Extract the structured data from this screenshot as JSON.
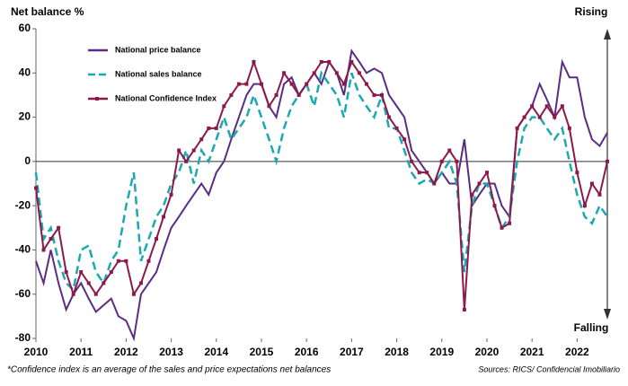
{
  "chart_data": {
    "type": "line",
    "title": "Net balance %",
    "annotations": {
      "top": "Rising",
      "bottom": "Falling"
    },
    "footnote": "*Confidence index is an average of the sales and price expectations net balances",
    "source": "Sources: RICS/ Confidencial Imobiliario",
    "x": [
      2010,
      2010.17,
      2010.33,
      2010.5,
      2010.67,
      2010.83,
      2011,
      2011.17,
      2011.33,
      2011.5,
      2011.67,
      2011.83,
      2012,
      2012.17,
      2012.33,
      2012.5,
      2012.67,
      2012.83,
      2013,
      2013.17,
      2013.33,
      2013.5,
      2013.67,
      2013.83,
      2014,
      2014.17,
      2014.33,
      2014.5,
      2014.67,
      2014.83,
      2015,
      2015.17,
      2015.33,
      2015.5,
      2015.67,
      2015.83,
      2016,
      2016.17,
      2016.33,
      2016.5,
      2016.67,
      2016.83,
      2017,
      2017.17,
      2017.33,
      2017.5,
      2017.67,
      2017.83,
      2018,
      2018.17,
      2018.33,
      2018.5,
      2018.67,
      2018.83,
      2019,
      2019.17,
      2019.33,
      2019.5,
      2019.67,
      2019.83,
      2020,
      2020.17,
      2020.33,
      2020.5,
      2020.67,
      2020.83,
      2021,
      2021.17,
      2021.33,
      2021.5,
      2021.67,
      2021.83,
      2022,
      2022.17,
      2022.33,
      2022.5,
      2022.67
    ],
    "series": [
      {
        "name": "National price balance",
        "color": "#5b2c83",
        "style": "solid",
        "markers": false,
        "values": [
          -45,
          -55,
          -40,
          -55,
          -67,
          -60,
          -55,
          -62,
          -68,
          -65,
          -62,
          -70,
          -72,
          -80,
          -60,
          -55,
          -50,
          -40,
          -30,
          -25,
          -20,
          -15,
          -10,
          -15,
          -5,
          0,
          10,
          20,
          30,
          35,
          35,
          25,
          20,
          35,
          38,
          30,
          35,
          40,
          35,
          45,
          40,
          30,
          50,
          45,
          40,
          42,
          40,
          30,
          25,
          20,
          5,
          0,
          -5,
          -10,
          -5,
          -10,
          -10,
          10,
          -20,
          -15,
          -10,
          -10,
          -20,
          -25,
          15,
          20,
          25,
          35,
          28,
          20,
          45,
          38,
          38,
          20,
          10,
          7,
          13
        ]
      },
      {
        "name": "National sales balance",
        "color": "#1aa9b0",
        "style": "dashed",
        "markers": false,
        "values": [
          -5,
          -35,
          -30,
          -45,
          -55,
          -58,
          -40,
          -38,
          -50,
          -55,
          -45,
          -40,
          -20,
          -5,
          -45,
          -35,
          -25,
          -20,
          -10,
          -5,
          5,
          -10,
          5,
          0,
          10,
          20,
          10,
          15,
          20,
          30,
          20,
          10,
          0,
          15,
          25,
          30,
          35,
          25,
          40,
          35,
          30,
          20,
          40,
          30,
          25,
          20,
          30,
          15,
          15,
          5,
          -5,
          -10,
          -8,
          -10,
          -5,
          0,
          -10,
          -50,
          -20,
          -10,
          -10,
          -20,
          -30,
          -25,
          0,
          15,
          20,
          20,
          15,
          10,
          15,
          0,
          -15,
          -25,
          -28,
          -20,
          -25
        ]
      },
      {
        "name": "National Confidence Index",
        "color": "#8b1a4a",
        "style": "solid",
        "markers": true,
        "values": [
          -12,
          -40,
          -35,
          -30,
          -50,
          -60,
          -50,
          -55,
          -60,
          -55,
          -50,
          -45,
          -45,
          -60,
          -55,
          -45,
          -35,
          -25,
          -15,
          5,
          0,
          5,
          10,
          15,
          15,
          25,
          30,
          35,
          35,
          45,
          35,
          25,
          30,
          40,
          35,
          30,
          35,
          40,
          45,
          45,
          40,
          35,
          45,
          40,
          35,
          30,
          30,
          20,
          15,
          10,
          0,
          -5,
          -5,
          -10,
          0,
          5,
          0,
          -67,
          -15,
          -10,
          -5,
          -20,
          -30,
          -28,
          15,
          20,
          25,
          20,
          25,
          20,
          25,
          15,
          -5,
          -20,
          -10,
          -15,
          0
        ]
      }
    ],
    "xlim": [
      2010,
      2022.65
    ],
    "xticks": [
      2010,
      2011,
      2012,
      2013,
      2014,
      2015,
      2016,
      2017,
      2018,
      2019,
      2020,
      2021,
      2022
    ],
    "ylim": [
      -80,
      60
    ],
    "yticks": [
      -80,
      -60,
      -40,
      -20,
      0,
      20,
      40,
      60
    ],
    "legend": "upper left"
  }
}
